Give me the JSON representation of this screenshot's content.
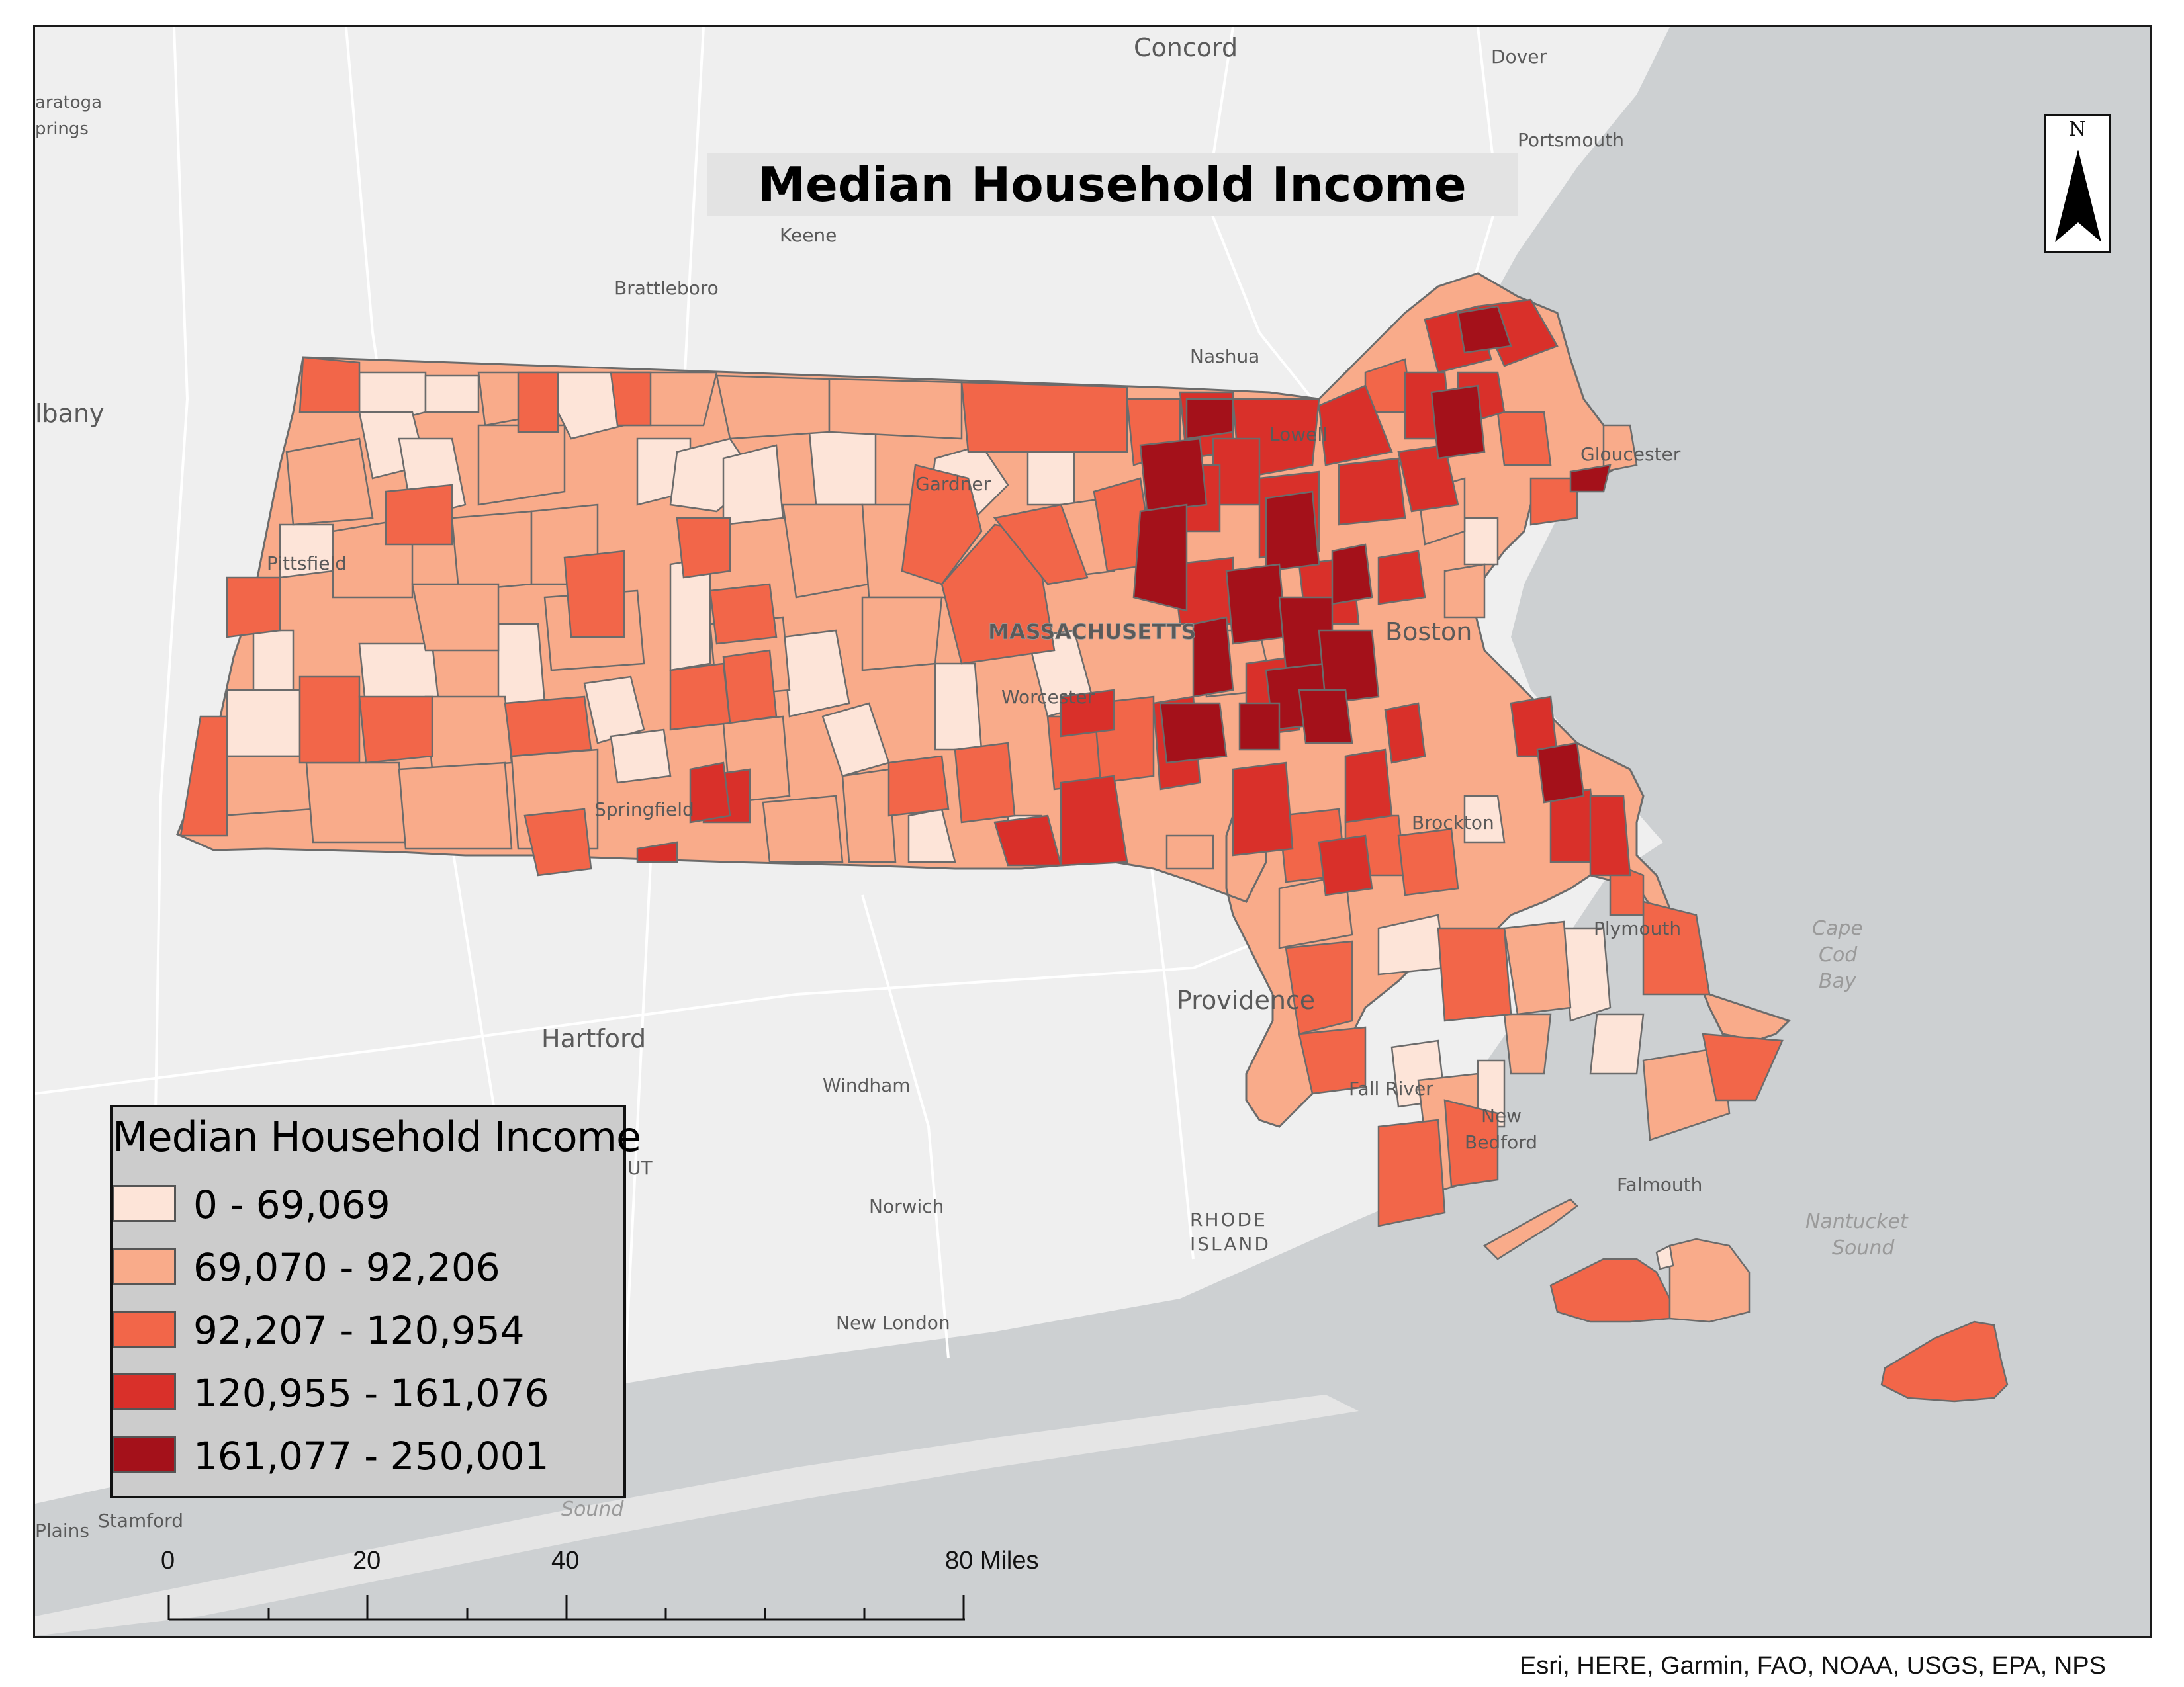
{
  "title": "Median Household Income",
  "north_letter": "N",
  "legend": {
    "title": "Median Household Income",
    "items": [
      {
        "label": "0 - 69,069",
        "color": "#fde4d8"
      },
      {
        "label": "69,070 - 92,206",
        "color": "#f9ab8a"
      },
      {
        "label": "92,207 - 120,954",
        "color": "#f26649"
      },
      {
        "label": "120,955 - 161,076",
        "color": "#d9302a"
      },
      {
        "label": "161,077 - 250,001",
        "color": "#a4111a"
      }
    ]
  },
  "scale": {
    "ticks": [
      "0",
      "20",
      "40",
      "80 Miles"
    ]
  },
  "attribution": "Esri, HERE, Garmin, FAO, NOAA, USGS, EPA, NPS",
  "places": {
    "concord": "Concord",
    "dover": "Dover",
    "saratoga": "aratoga",
    "springs": "prings",
    "portsmouth": "Portsmouth",
    "keene": "Keene",
    "brattleboro": "Brattleboro",
    "nashua": "Nashua",
    "albany": "lbany",
    "lowell": "Lowell",
    "gloucester": "Gloucester",
    "gardner": "Gardner",
    "pittsfield": "Pittsfield",
    "massachusetts": "MASSACHUSETTS",
    "boston": "Boston",
    "worcester": "Worcester",
    "springfield": "Springfield",
    "brockton": "Brockton",
    "plymouth": "Plymouth",
    "providence": "Providence",
    "hartford": "Hartford",
    "windham": "Windham",
    "fall_river": "Fall River",
    "new": "New",
    "bedford": "Bedford",
    "norwich": "Norwich",
    "rhode": "RHODE",
    "island": "ISLAND",
    "falmouth": "Falmouth",
    "new_london": "New London",
    "stamford": "Stamford",
    "plains": "Plains",
    "ut": "UT"
  },
  "water": {
    "cape": "Cape",
    "cod": "Cod",
    "bay": "Bay",
    "nantucket": "Nantucket",
    "sound_1": "Sound",
    "sound_2": "Sound"
  },
  "colors": {
    "land": "#efefef",
    "ocean": "#cdd0d2",
    "roads": "#ffffff",
    "boundary": "#6b6b6b"
  }
}
